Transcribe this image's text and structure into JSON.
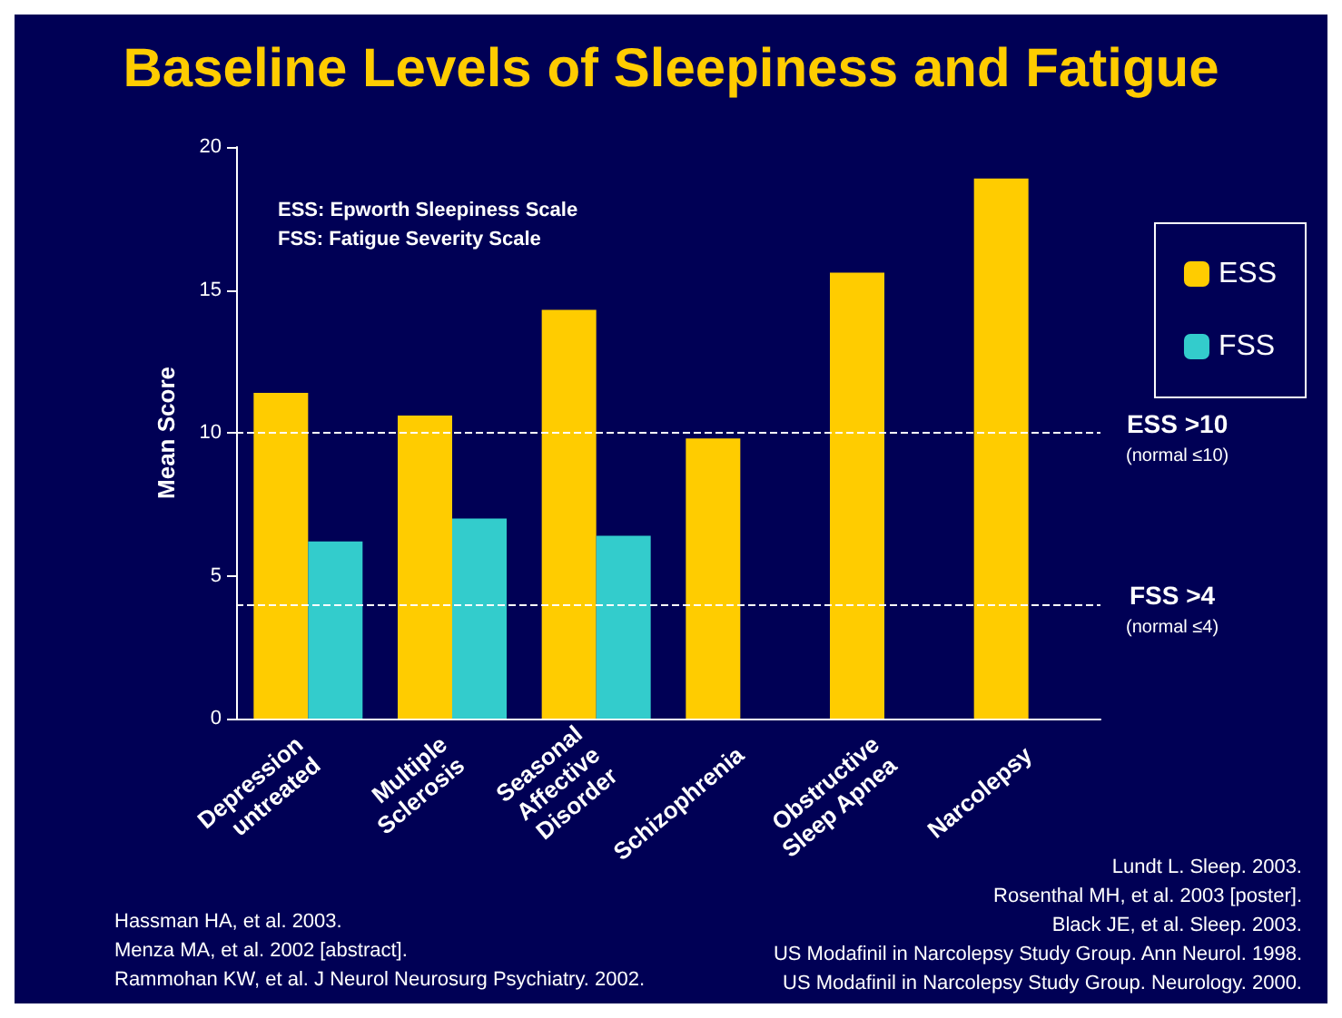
{
  "chart_data": {
    "type": "bar",
    "title": "Baseline Levels of Sleepiness and Fatigue",
    "ylabel": "Mean Score",
    "categories": [
      "Depression\nuntreated",
      "Multiple\nSclerosis",
      "Seasonal\nAffective\nDisorder",
      "Schizophrenia",
      "Obstructive\nSleep Apnea",
      "Narcolepsy"
    ],
    "series": [
      {
        "name": "ESS",
        "color": "#ffcc00",
        "values": [
          11.4,
          10.6,
          14.3,
          9.8,
          15.6,
          18.9
        ]
      },
      {
        "name": "FSS",
        "color": "#33cccc",
        "values": [
          6.2,
          7.0,
          6.4,
          null,
          null,
          null
        ]
      }
    ],
    "ylim": [
      0,
      20
    ],
    "yticks": [
      0,
      5,
      10,
      15,
      20
    ],
    "grid": false,
    "legend": "right",
    "ref_lines": [
      {
        "axis": "y",
        "value": 10,
        "label": "ESS >10\n(normal ≤10)",
        "line_style": "dashed"
      },
      {
        "axis": "y",
        "value": 4,
        "label": "FSS >4\n(normal ≤4)",
        "line_style": "dashed"
      }
    ],
    "annotations": [
      "ESS: Epworth Sleepiness Scale\nFSS: Fatigue Severity Scale",
      "Hassman HA, et al. 2003.\nMenza MA, et al. 2002 [abstract].\nRammohan KW, et al. J Neurol Neurosurg Psychiatry. 2002.",
      "Lundt L. Sleep. 2003.\nRosenthal MH, et al. 2003 [poster].\nBlack JE, et al. Sleep. 2003.\nUS Modafinil in Narcolepsy Study Group. Ann Neurol. 1998.\nUS Modafinil in Narcolepsy Study Group. Neurology. 2000."
    ]
  }
}
